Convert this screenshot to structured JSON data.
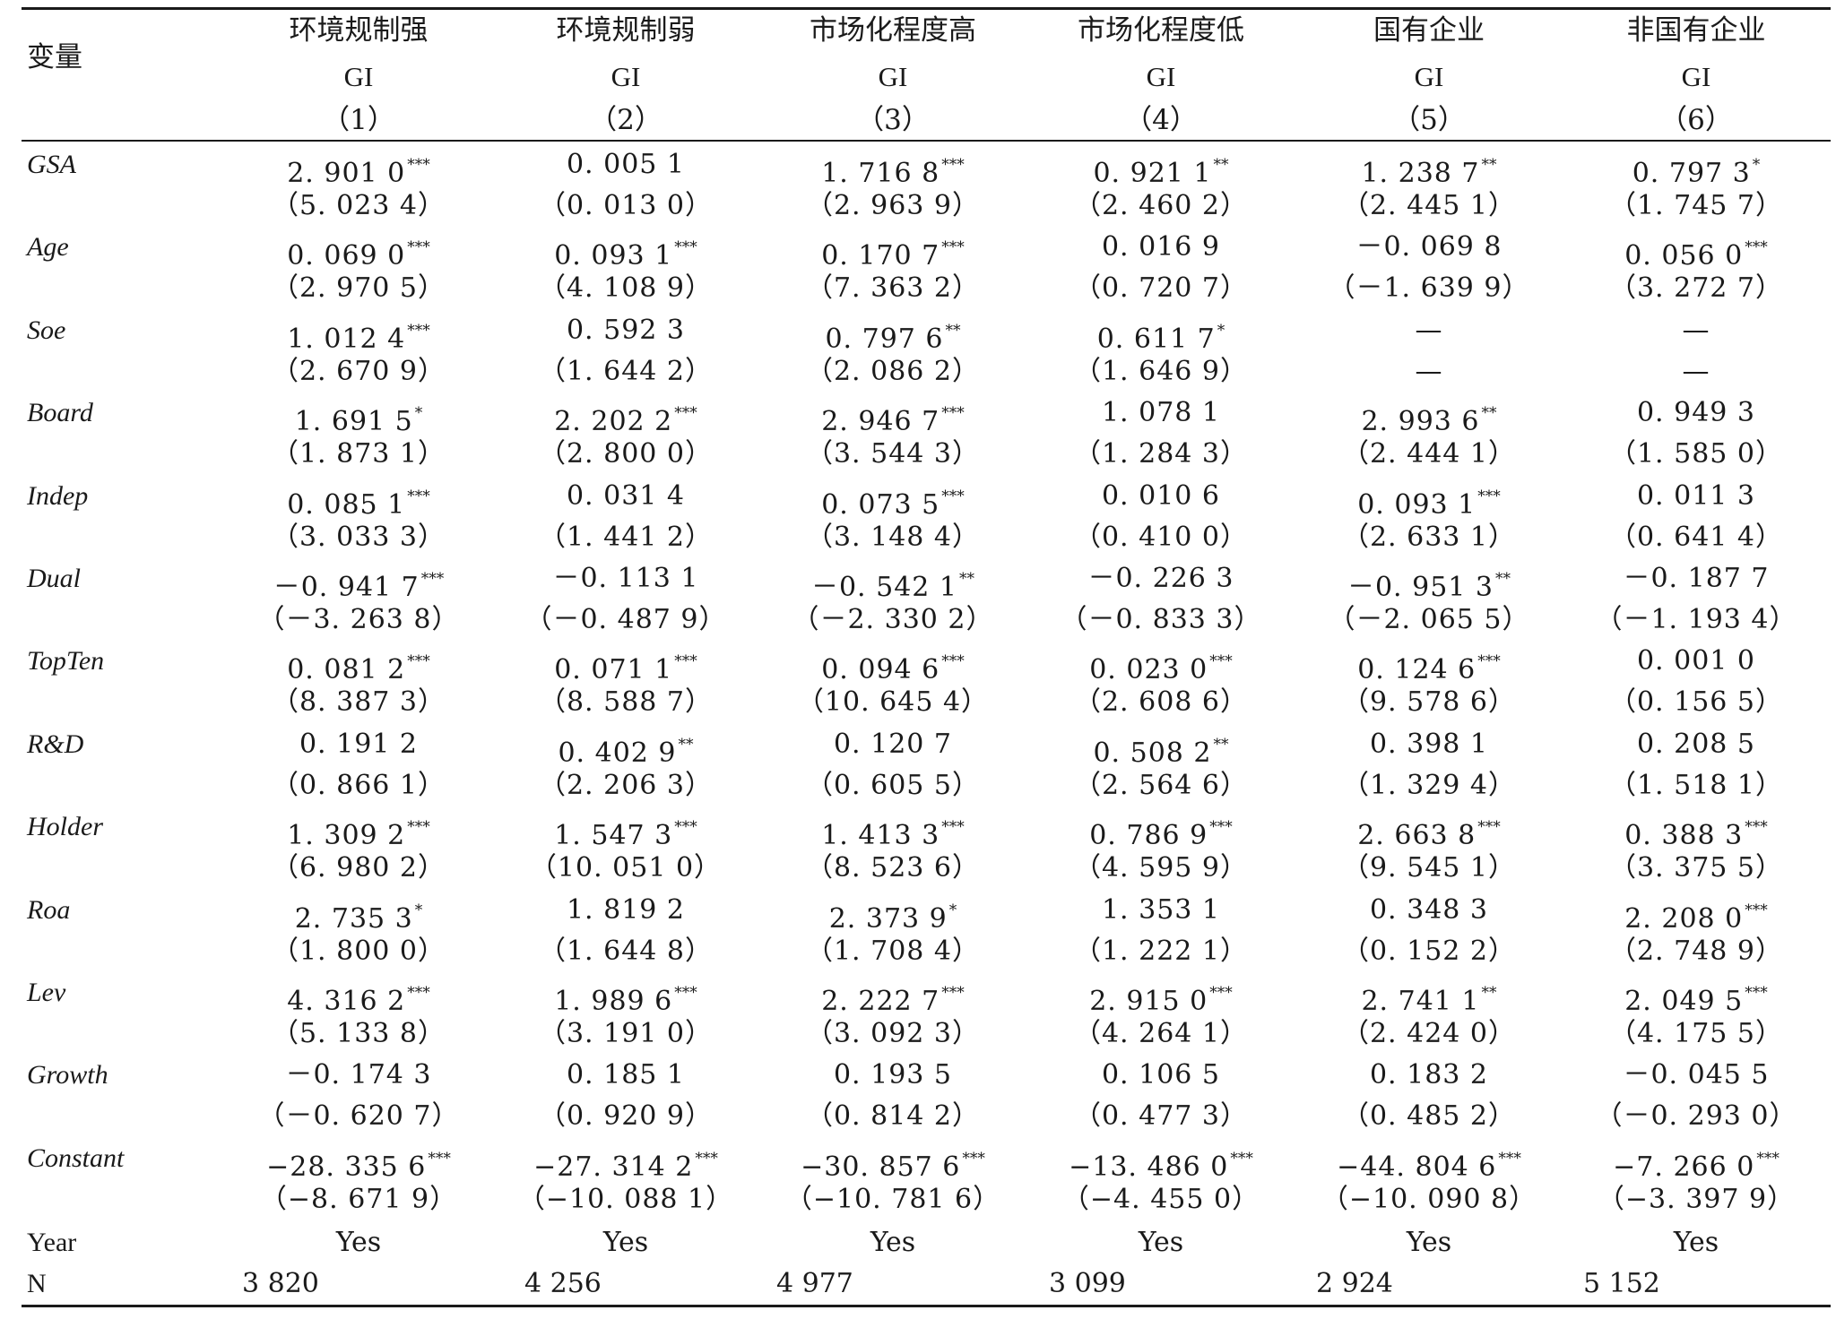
{
  "header": {
    "variable_label": "变量",
    "columns": [
      {
        "title": "环境规制强",
        "dep": "GI",
        "num": "（1）"
      },
      {
        "title": "环境规制弱",
        "dep": "GI",
        "num": "（2）"
      },
      {
        "title": "市场化程度高",
        "dep": "GI",
        "num": "（3）"
      },
      {
        "title": "市场化程度低",
        "dep": "GI",
        "num": "（4）"
      },
      {
        "title": "国有企业",
        "dep": "GI",
        "num": "（5）"
      },
      {
        "title": "非国有企业",
        "dep": "GI",
        "num": "（6）"
      }
    ]
  },
  "rows": [
    {
      "name": "GSA",
      "cells": [
        {
          "coef": "2. 901 0",
          "stars": "***",
          "t": "（5. 023 4）"
        },
        {
          "coef": "0. 005 1",
          "stars": "",
          "t": "（0. 013 0）"
        },
        {
          "coef": "1. 716 8",
          "stars": "***",
          "t": "（2. 963 9）"
        },
        {
          "coef": "0. 921 1",
          "stars": "**",
          "t": "（2. 460 2）"
        },
        {
          "coef": "1. 238 7",
          "stars": "**",
          "t": "（2. 445 1）"
        },
        {
          "coef": "0. 797 3",
          "stars": "*",
          "t": "（1. 745 7）"
        }
      ]
    },
    {
      "name": "Age",
      "cells": [
        {
          "coef": "0. 069 0",
          "stars": "***",
          "t": "（2. 970 5）"
        },
        {
          "coef": "0. 093 1",
          "stars": "***",
          "t": "（4. 108 9）"
        },
        {
          "coef": "0. 170 7",
          "stars": "***",
          "t": "（7. 363 2）"
        },
        {
          "coef": "0. 016 9",
          "stars": "",
          "t": "（0. 720 7）"
        },
        {
          "coef": "－0. 069 8",
          "stars": "",
          "t": "（－1. 639 9）"
        },
        {
          "coef": "0. 056 0",
          "stars": "***",
          "t": "（3. 272 7）"
        }
      ]
    },
    {
      "name": "Soe",
      "cells": [
        {
          "coef": "1. 012 4",
          "stars": "***",
          "t": "（2. 670 9）"
        },
        {
          "coef": "0. 592 3",
          "stars": "",
          "t": "（1. 644 2）"
        },
        {
          "coef": "0. 797 6",
          "stars": "**",
          "t": "（2. 086 2）"
        },
        {
          "coef": "0. 611 7",
          "stars": "*",
          "t": "（1. 646 9）"
        },
        {
          "coef": "—",
          "stars": "",
          "t": "—"
        },
        {
          "coef": "—",
          "stars": "",
          "t": "—"
        }
      ]
    },
    {
      "name": "Board",
      "cells": [
        {
          "coef": "1. 691 5",
          "stars": "*",
          "t": "（1. 873 1）"
        },
        {
          "coef": "2. 202 2",
          "stars": "***",
          "t": "（2. 800 0）"
        },
        {
          "coef": "2. 946 7",
          "stars": "***",
          "t": "（3. 544 3）"
        },
        {
          "coef": "1. 078 1",
          "stars": "",
          "t": "（1. 284 3）"
        },
        {
          "coef": "2. 993 6",
          "stars": "**",
          "t": "（2. 444 1）"
        },
        {
          "coef": "0. 949 3",
          "stars": "",
          "t": "（1. 585 0）"
        }
      ]
    },
    {
      "name": "Indep",
      "cells": [
        {
          "coef": "0. 085 1",
          "stars": "***",
          "t": "（3. 033 3）"
        },
        {
          "coef": "0. 031 4",
          "stars": "",
          "t": "（1. 441 2）"
        },
        {
          "coef": "0. 073 5",
          "stars": "***",
          "t": "（3. 148 4）"
        },
        {
          "coef": "0. 010 6",
          "stars": "",
          "t": "（0. 410 0）"
        },
        {
          "coef": "0. 093 1",
          "stars": "***",
          "t": "（2. 633 1）"
        },
        {
          "coef": "0. 011 3",
          "stars": "",
          "t": "（0. 641 4）"
        }
      ]
    },
    {
      "name": "Dual",
      "cells": [
        {
          "coef": "－0. 941 7",
          "stars": "***",
          "t": "（－3. 263 8）"
        },
        {
          "coef": "－0. 113 1",
          "stars": "",
          "t": "（－0. 487 9）"
        },
        {
          "coef": "－0. 542 1",
          "stars": "**",
          "t": "（－2. 330 2）"
        },
        {
          "coef": "－0. 226 3",
          "stars": "",
          "t": "（－0. 833 3）"
        },
        {
          "coef": "－0. 951 3",
          "stars": "**",
          "t": "（－2. 065 5）"
        },
        {
          "coef": "－0. 187 7",
          "stars": "",
          "t": "（－1. 193 4）"
        }
      ]
    },
    {
      "name": "TopTen",
      "cells": [
        {
          "coef": "0. 081 2",
          "stars": "***",
          "t": "（8. 387 3）"
        },
        {
          "coef": "0. 071 1",
          "stars": "***",
          "t": "（8. 588 7）"
        },
        {
          "coef": "0. 094 6",
          "stars": "***",
          "t": "（10. 645 4）"
        },
        {
          "coef": "0. 023 0",
          "stars": "***",
          "t": "（2. 608 6）"
        },
        {
          "coef": "0. 124 6",
          "stars": "***",
          "t": "（9. 578 6）"
        },
        {
          "coef": "0. 001 0",
          "stars": "",
          "t": "（0. 156 5）"
        }
      ]
    },
    {
      "name": "R&D",
      "cells": [
        {
          "coef": "0. 191 2",
          "stars": "",
          "t": "（0. 866 1）"
        },
        {
          "coef": "0. 402 9",
          "stars": "**",
          "t": "（2. 206 3）"
        },
        {
          "coef": "0. 120 7",
          "stars": "",
          "t": "（0. 605 5）"
        },
        {
          "coef": "0. 508 2",
          "stars": "**",
          "t": "（2. 564 6）"
        },
        {
          "coef": "0. 398 1",
          "stars": "",
          "t": "（1. 329 4）"
        },
        {
          "coef": "0. 208 5",
          "stars": "",
          "t": "（1. 518 1）"
        }
      ]
    },
    {
      "name": "Holder",
      "cells": [
        {
          "coef": "1. 309 2",
          "stars": "***",
          "t": "（6. 980 2）"
        },
        {
          "coef": "1. 547 3",
          "stars": "***",
          "t": "（10. 051 0）"
        },
        {
          "coef": "1. 413 3",
          "stars": "***",
          "t": "（8. 523 6）"
        },
        {
          "coef": "0. 786 9",
          "stars": "***",
          "t": "（4. 595 9）"
        },
        {
          "coef": "2. 663 8",
          "stars": "***",
          "t": "（9. 545 1）"
        },
        {
          "coef": "0. 388 3",
          "stars": "***",
          "t": "（3. 375 5）"
        }
      ]
    },
    {
      "name": "Roa",
      "cells": [
        {
          "coef": "2. 735 3",
          "stars": "*",
          "t": "（1. 800 0）"
        },
        {
          "coef": "1. 819 2",
          "stars": "",
          "t": "（1. 644 8）"
        },
        {
          "coef": "2. 373 9",
          "stars": "*",
          "t": "（1. 708 4）"
        },
        {
          "coef": "1. 353 1",
          "stars": "",
          "t": "（1. 222 1）"
        },
        {
          "coef": "0. 348 3",
          "stars": "",
          "t": "（0. 152 2）"
        },
        {
          "coef": "2. 208 0",
          "stars": "***",
          "t": "（2. 748 9）"
        }
      ]
    },
    {
      "name": "Lev",
      "cells": [
        {
          "coef": "4. 316 2",
          "stars": "***",
          "t": "（5. 133 8）"
        },
        {
          "coef": "1. 989 6",
          "stars": "***",
          "t": "（3. 191 0）"
        },
        {
          "coef": "2. 222 7",
          "stars": "***",
          "t": "（3. 092 3）"
        },
        {
          "coef": "2. 915 0",
          "stars": "***",
          "t": "（4. 264 1）"
        },
        {
          "coef": "2. 741 1",
          "stars": "**",
          "t": "（2. 424 0）"
        },
        {
          "coef": "2. 049 5",
          "stars": "***",
          "t": "（4. 175 5）"
        }
      ]
    },
    {
      "name": "Growth",
      "cells": [
        {
          "coef": "－0. 174 3",
          "stars": "",
          "t": "（－0. 620 7）"
        },
        {
          "coef": "0. 185 1",
          "stars": "",
          "t": "（0. 920 9）"
        },
        {
          "coef": "0. 193 5",
          "stars": "",
          "t": "（0. 814 2）"
        },
        {
          "coef": "0. 106 5",
          "stars": "",
          "t": "（0. 477 3）"
        },
        {
          "coef": "0. 183 2",
          "stars": "",
          "t": "（0. 485 2）"
        },
        {
          "coef": "－0. 045 5",
          "stars": "",
          "t": "（－0. 293 0）"
        }
      ]
    },
    {
      "name": "Constant",
      "cells": [
        {
          "coef": "−28. 335 6",
          "stars": "***",
          "t": "（−8. 671 9）"
        },
        {
          "coef": "−27. 314 2",
          "stars": "***",
          "t": "（−10. 088 1）"
        },
        {
          "coef": "−30. 857 6",
          "stars": "***",
          "t": "（−10. 781 6）"
        },
        {
          "coef": "−13. 486 0",
          "stars": "***",
          "t": "（−4. 455 0）"
        },
        {
          "coef": "−44. 804 6",
          "stars": "***",
          "t": "（−10. 090 8）"
        },
        {
          "coef": "−7. 266 0",
          "stars": "***",
          "t": "（−3. 397 9）"
        }
      ]
    }
  ],
  "footer": {
    "year": {
      "label": "Year",
      "values": [
        "Yes",
        "Yes",
        "Yes",
        "Yes",
        "Yes",
        "Yes"
      ]
    },
    "n": {
      "label": "N",
      "values": [
        "3 820",
        "4 256",
        "4 977",
        "3 099",
        "2 924",
        "5 152"
      ]
    }
  }
}
